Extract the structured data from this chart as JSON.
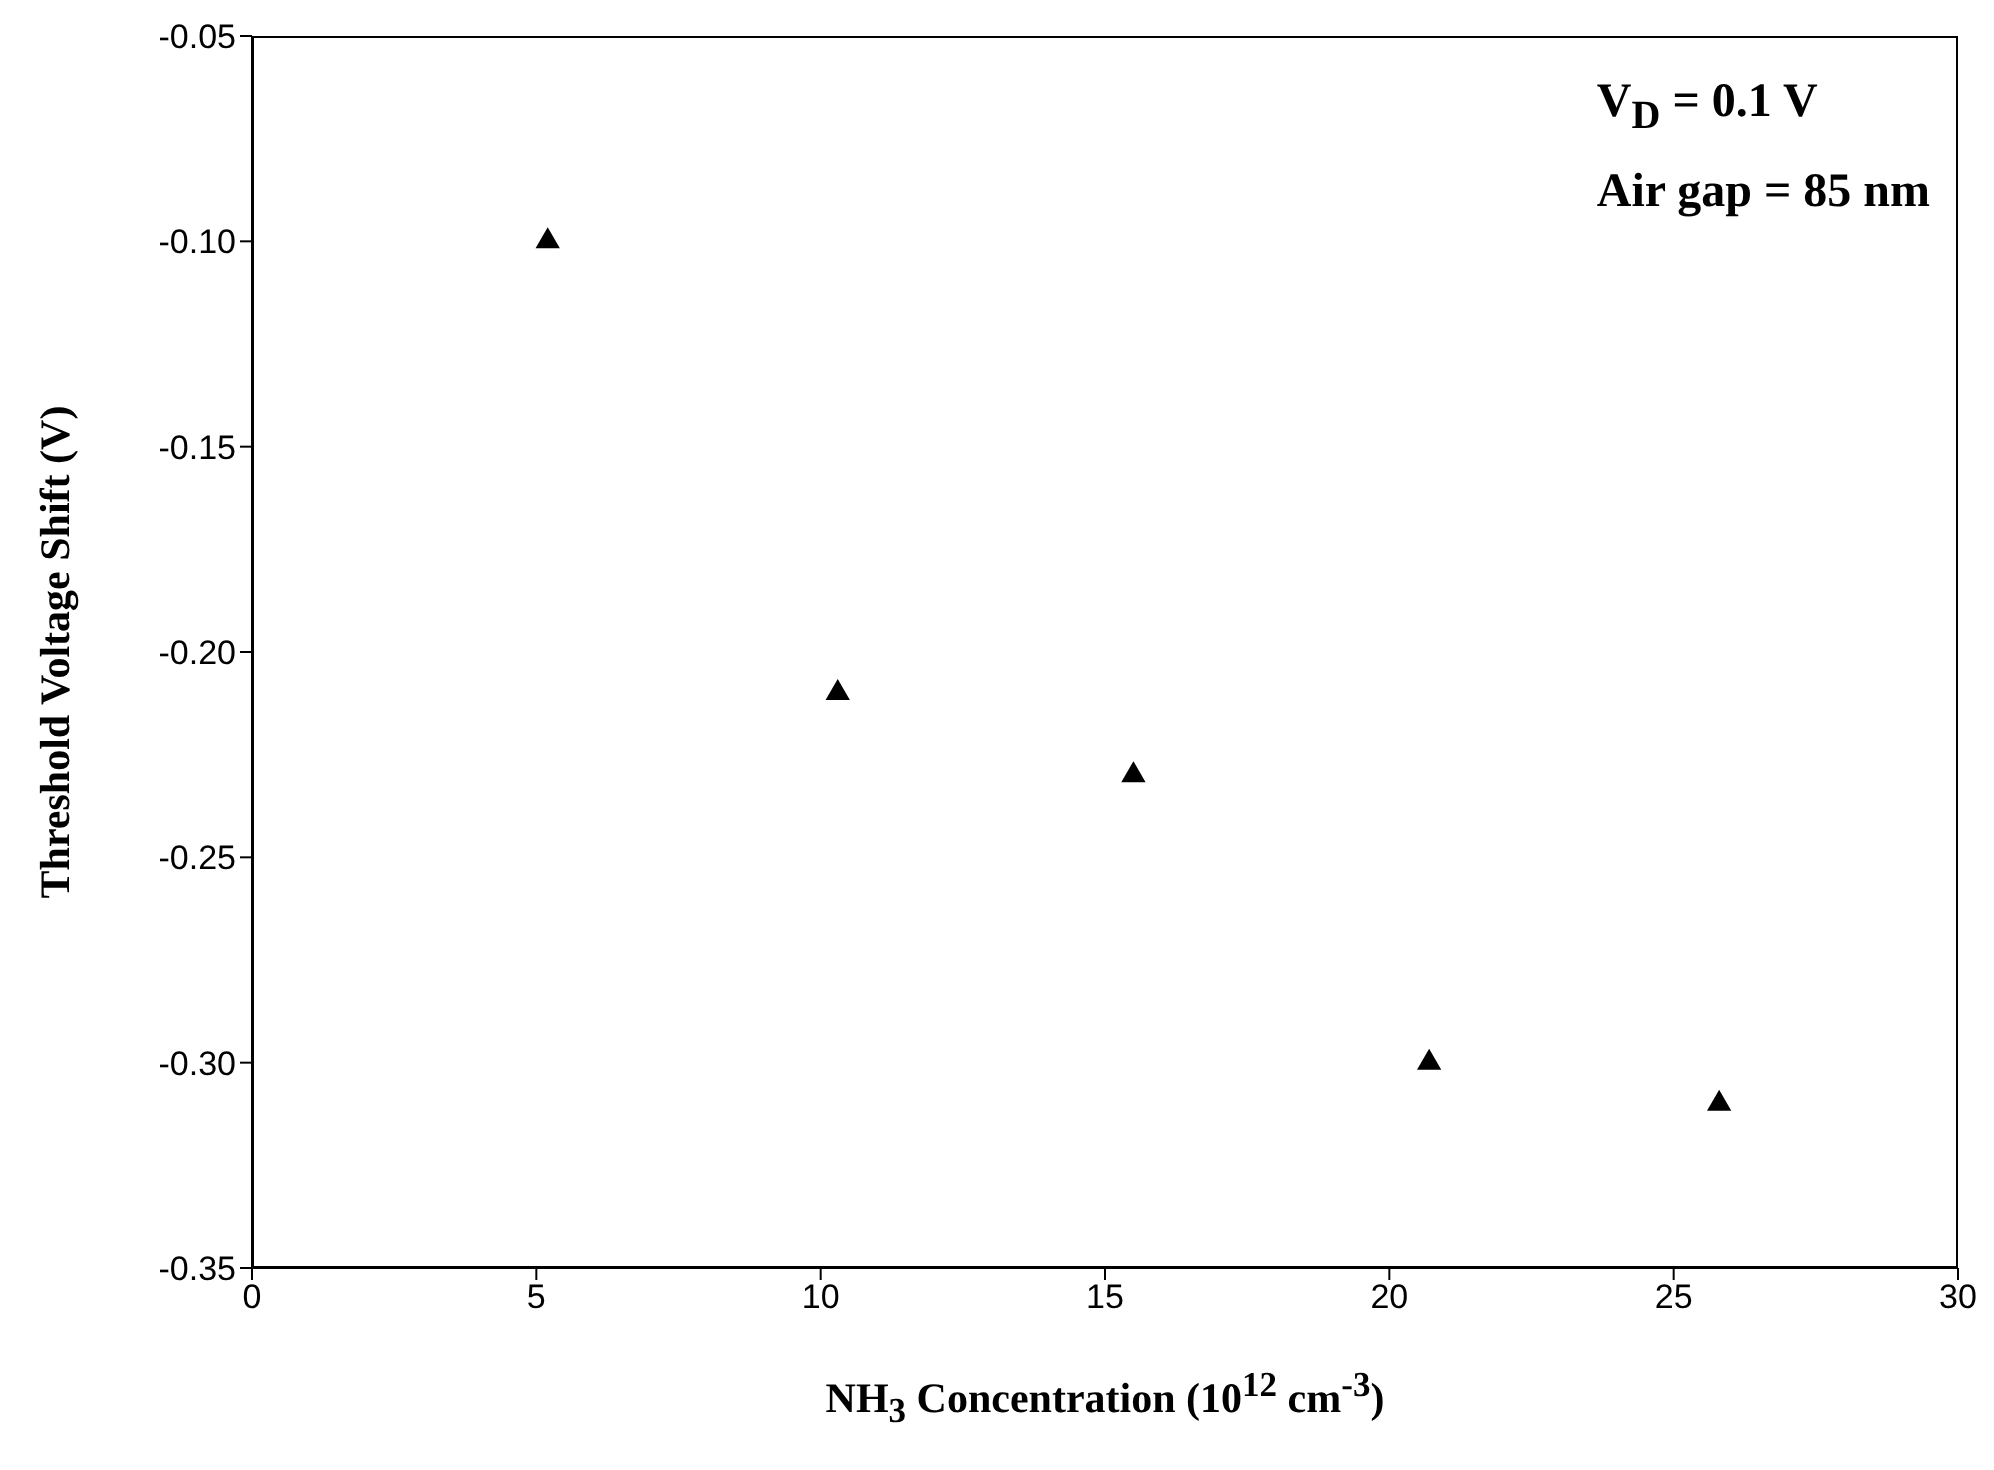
{
  "chart_data": {
    "type": "scatter",
    "xlabel": "NH$_{3}$ Concentration (10$^{12}$ cm$^{-3}$)",
    "ylabel": "Threshold Voltage Shift (V)",
    "annotations": [
      "V$_{D}$ = 0.1 V",
      "Air gap = 85 nm"
    ],
    "x": [
      5.2,
      10.3,
      15.5,
      20.7,
      25.8
    ],
    "series": [
      {
        "color": "#000000",
        "values": [
          -0.1,
          -0.21,
          -0.23,
          -0.3,
          -0.31
        ]
      }
    ],
    "marker": "triangle",
    "xlim": [
      0,
      30
    ],
    "xticks": [
      0,
      5,
      10,
      15,
      20,
      25,
      30
    ],
    "ylim": [
      -0.35,
      -0.05
    ],
    "yticks": [
      -0.35,
      {
        "value": -0.3,
        "label": "-0.30"
      },
      -0.25,
      {
        "value": -0.2,
        "label": "-0.20"
      },
      -0.15,
      {
        "value": -0.1,
        "label": "-0.10"
      },
      -0.05
    ]
  }
}
